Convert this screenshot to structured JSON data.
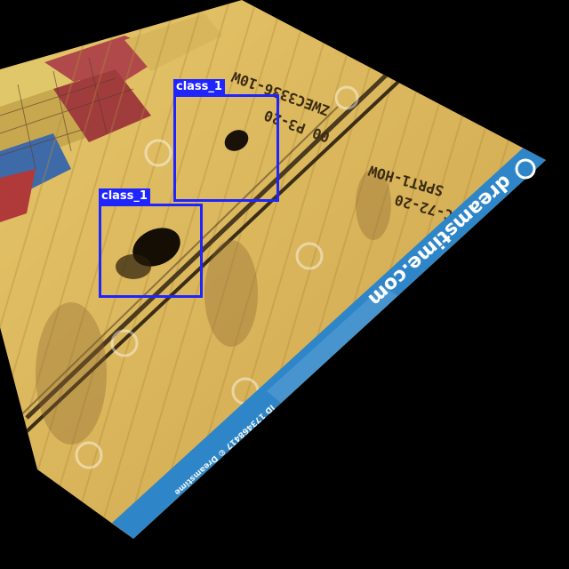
{
  "image": {
    "description_colors": {
      "background": "#000000",
      "container": "#d8b45a",
      "container_dark": "#a8843a",
      "watermark_band": "#2e86c8",
      "box": "#1f25ff"
    }
  },
  "watermark": {
    "brand": "dreamstime.com",
    "id_line": "ID 173468417 © Dreamstime"
  },
  "detections": [
    {
      "label": "class_1"
    },
    {
      "label": "class_1"
    }
  ]
}
